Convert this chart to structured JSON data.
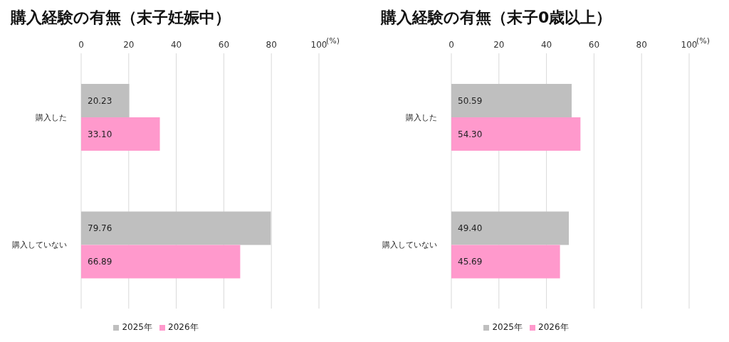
{
  "chart_data": [
    {
      "type": "bar",
      "orientation": "horizontal",
      "title": "購入経験の有無（末子妊娠中）",
      "xlabel": "(%)",
      "categories": [
        "購入した",
        "購入していない"
      ],
      "series": [
        {
          "name": "2025年",
          "color": "#bfbfbf",
          "values": [
            20.23,
            79.76
          ],
          "value_labels": [
            "20.23",
            "79.76"
          ]
        },
        {
          "name": "2026年",
          "color": "#ff99cc",
          "values": [
            33.1,
            66.89
          ],
          "value_labels": [
            "33.10",
            "66.89"
          ]
        }
      ],
      "xlim": [
        0,
        100
      ],
      "xticks": [
        0,
        20,
        40,
        60,
        80,
        100
      ],
      "grid": "x",
      "legend": "bottom"
    },
    {
      "type": "bar",
      "orientation": "horizontal",
      "title": "購入経験の有無（末子0歳以上）",
      "xlabel": "(%)",
      "categories": [
        "購入した",
        "購入していない"
      ],
      "series": [
        {
          "name": "2025年",
          "color": "#bfbfbf",
          "values": [
            50.59,
            49.4
          ],
          "value_labels": [
            "50.59",
            "49.40"
          ]
        },
        {
          "name": "2026年",
          "color": "#ff99cc",
          "values": [
            54.3,
            45.69
          ],
          "value_labels": [
            "54.30",
            "45.69"
          ]
        }
      ],
      "xlim": [
        0,
        100
      ],
      "xticks": [
        0,
        20,
        40,
        60,
        80,
        100
      ],
      "grid": "x",
      "legend": "bottom"
    }
  ]
}
